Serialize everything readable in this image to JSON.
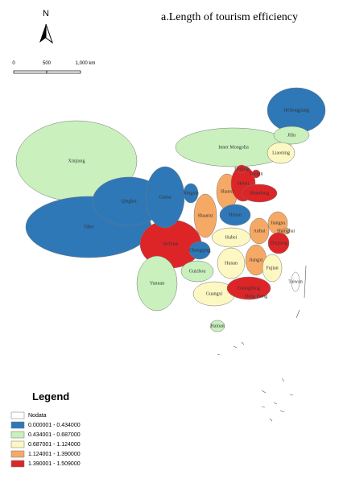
{
  "title": "a.Length of tourism efficiency",
  "north": "N",
  "scale": [
    "0",
    "500",
    "1,000 km"
  ],
  "legend": {
    "title": "Legend",
    "items": [
      {
        "label": "Nodata",
        "color": "#ffffff"
      },
      {
        "label": "0.000001 - 0.434000",
        "color": "#2e78b8"
      },
      {
        "label": "0.434001 - 0.687000",
        "color": "#c9f0bd"
      },
      {
        "label": "0.687001 - 1.124000",
        "color": "#fdf8c2"
      },
      {
        "label": "1.124001 - 1.390000",
        "color": "#f6a965"
      },
      {
        "label": "1.390001 - 1.509000",
        "color": "#dd2528"
      }
    ]
  },
  "provinces": [
    {
      "name": "Xinjiang",
      "class": 2
    },
    {
      "name": "Tibet",
      "class": 1
    },
    {
      "name": "Inner Mongolia",
      "class": 2
    },
    {
      "name": "Heilongjiang",
      "class": 1
    },
    {
      "name": "Qinghai",
      "class": 1
    },
    {
      "name": "Sichuan",
      "class": 5
    },
    {
      "name": "Gansu",
      "class": 1
    },
    {
      "name": "Yunnan",
      "class": 2
    },
    {
      "name": "Ningxia",
      "class": 1
    },
    {
      "name": "Jilin",
      "class": 2
    },
    {
      "name": "Liaoning",
      "class": 3
    },
    {
      "name": "Shaanxi",
      "class": 4
    },
    {
      "name": "Shanxi",
      "class": 4
    },
    {
      "name": "Hebei",
      "class": 5
    },
    {
      "name": "Shandong",
      "class": 5
    },
    {
      "name": "Henan",
      "class": 1
    },
    {
      "name": "Hubei",
      "class": 3
    },
    {
      "name": "Hunan",
      "class": 3
    },
    {
      "name": "Guangxi",
      "class": 3
    },
    {
      "name": "Guangdong",
      "class": 5
    },
    {
      "name": "Guizhou",
      "class": 2
    },
    {
      "name": "Chongqing",
      "class": 1
    },
    {
      "name": "Jiangxi",
      "class": 4
    },
    {
      "name": "Fujian",
      "class": 3
    },
    {
      "name": "Anhui",
      "class": 4
    },
    {
      "name": "Jiangsu",
      "class": 4
    },
    {
      "name": "Zhejiang",
      "class": 5
    },
    {
      "name": "Shanghai",
      "class": 4
    },
    {
      "name": "Beijing",
      "class": 5
    },
    {
      "name": "Tianjin",
      "class": 5
    },
    {
      "name": "Hainan",
      "class": 2
    },
    {
      "name": "Taiwan",
      "class": 0
    },
    {
      "name": "Hong Kong",
      "class": 5
    }
  ]
}
